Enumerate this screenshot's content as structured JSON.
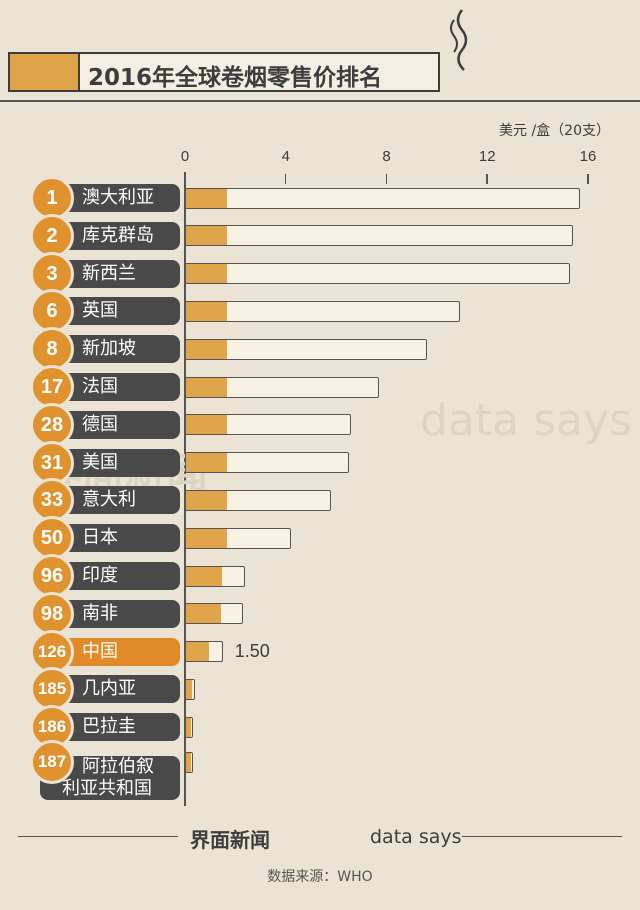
{
  "chart_data": {
    "type": "bar",
    "title": "2016年全球卷烟零售价排名",
    "unit": "美元 /盒（20支）",
    "categories": [
      "澳大利亚",
      "库克群岛",
      "新西兰",
      "英国",
      "新加坡",
      "法国",
      "德国",
      "美国",
      "意大利",
      "日本",
      "印度",
      "南非",
      "中国",
      "几内亚",
      "巴拉圭",
      "阿拉伯叙利亚共和国"
    ],
    "ranks": [
      1,
      2,
      3,
      6,
      8,
      17,
      28,
      31,
      33,
      50,
      96,
      98,
      126,
      185,
      186,
      187
    ],
    "values": [
      15.7,
      15.4,
      15.3,
      10.9,
      9.6,
      7.7,
      6.6,
      6.5,
      5.8,
      4.2,
      2.4,
      2.3,
      1.5,
      0.4,
      0.3,
      0.3
    ],
    "value_labels": [
      null,
      null,
      null,
      null,
      null,
      null,
      null,
      null,
      null,
      null,
      null,
      null,
      "1.50",
      null,
      null,
      null
    ],
    "pill_colors": [
      "#4a4949",
      "#4a4949",
      "#4a4949",
      "#4a4949",
      "#4a4949",
      "#4a4949",
      "#4a4949",
      "#4a4949",
      "#4a4949",
      "#4a4949",
      "#4a4949",
      "#4a4949",
      "#e08a2a",
      "#4a4949",
      "#4a4949",
      "#4a4949"
    ],
    "xlim": [
      0,
      16
    ],
    "xticks": [
      0,
      4,
      8,
      12,
      16
    ]
  },
  "brand": [
    "界面新闻",
    "data says"
  ],
  "source": "数据来源：WHO"
}
